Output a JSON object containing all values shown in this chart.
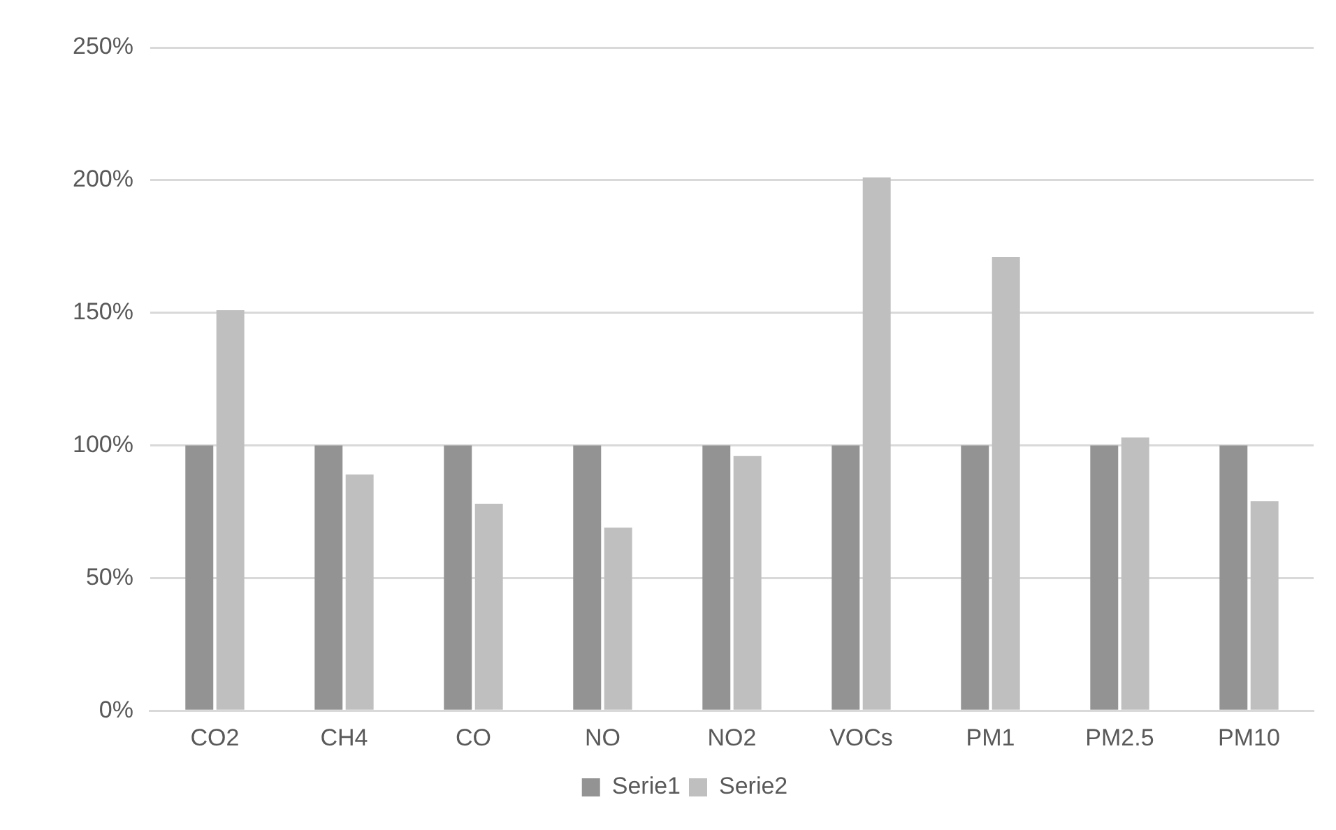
{
  "chart_data": {
    "type": "bar",
    "categories": [
      "CO2",
      "CH4",
      "CO",
      "NO",
      "NO2",
      "VOCs",
      "PM1",
      "PM2.5",
      "PM10"
    ],
    "series": [
      {
        "name": "Serie1",
        "color": "#939393",
        "values": [
          100,
          100,
          100,
          100,
          100,
          100,
          100,
          100,
          100
        ]
      },
      {
        "name": "Serie2",
        "color": "#bfbfbf",
        "values": [
          151,
          89,
          78,
          69,
          96,
          201,
          171,
          103,
          79
        ]
      }
    ],
    "ylim": [
      0,
      250
    ],
    "yticks": [
      {
        "value": 0,
        "label": "0%"
      },
      {
        "value": 50,
        "label": "50%"
      },
      {
        "value": 100,
        "label": "100%"
      },
      {
        "value": 150,
        "label": "150%"
      },
      {
        "value": 200,
        "label": "200%"
      },
      {
        "value": 250,
        "label": "250%"
      }
    ],
    "grid": "y",
    "legend": "bottom"
  }
}
